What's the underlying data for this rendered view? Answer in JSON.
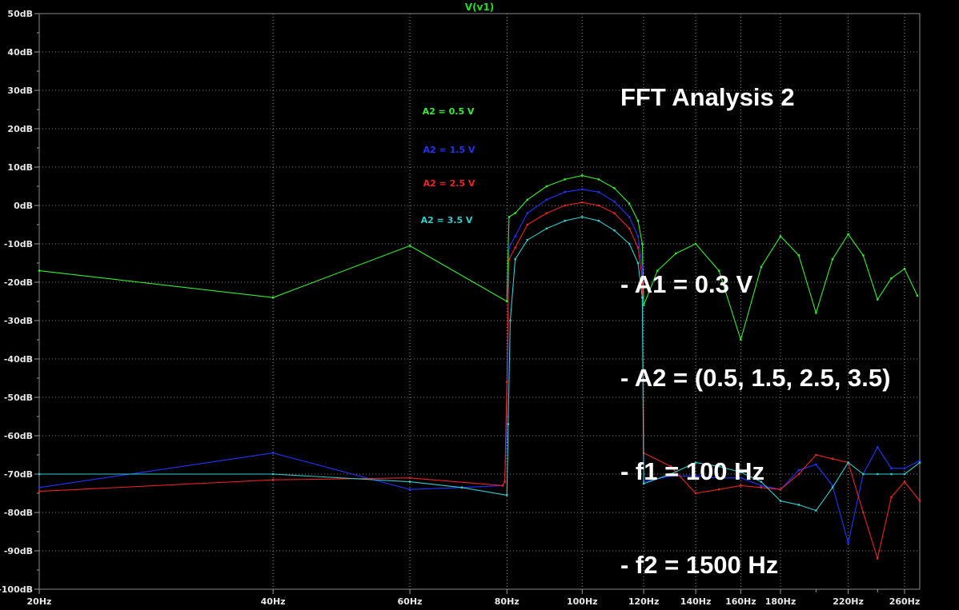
{
  "chart_data": {
    "type": "line",
    "title": "V(v1)",
    "x_axis": {
      "range_hz": [
        20,
        272
      ],
      "scale": "log",
      "ticks": [
        {
          "value": 20,
          "label": "20Hz"
        },
        {
          "value": 40,
          "label": "40Hz"
        },
        {
          "value": 60,
          "label": "60Hz"
        },
        {
          "value": 80,
          "label": "80Hz"
        },
        {
          "value": 100,
          "label": "100Hz"
        },
        {
          "value": 120,
          "label": "120Hz"
        },
        {
          "value": 140,
          "label": "140Hz"
        },
        {
          "value": 160,
          "label": "160Hz"
        },
        {
          "value": 180,
          "label": "180Hz"
        },
        {
          "value": 220,
          "label": "220Hz"
        },
        {
          "value": 260,
          "label": "260Hz"
        }
      ]
    },
    "y_axis": {
      "range_db": [
        -100,
        50
      ],
      "ticks": [
        {
          "value": 50,
          "label": "50dB"
        },
        {
          "value": 40,
          "label": "40dB"
        },
        {
          "value": 30,
          "label": "30dB"
        },
        {
          "value": 20,
          "label": "20dB"
        },
        {
          "value": 10,
          "label": "10dB"
        },
        {
          "value": 0,
          "label": "0dB"
        },
        {
          "value": -10,
          "label": "-10dB"
        },
        {
          "value": -20,
          "label": "-20dB"
        },
        {
          "value": -30,
          "label": "-30dB"
        },
        {
          "value": -40,
          "label": "-40dB"
        },
        {
          "value": -50,
          "label": "-50dB"
        },
        {
          "value": -60,
          "label": "-60dB"
        },
        {
          "value": -70,
          "label": "-70dB"
        },
        {
          "value": -80,
          "label": "-80dB"
        },
        {
          "value": -90,
          "label": "-90dB"
        },
        {
          "value": -100,
          "label": "-100dB"
        }
      ]
    },
    "grid": true,
    "series": [
      {
        "name": "A2 = 0.5 V",
        "color": "#33ee33",
        "points": [
          [
            20,
            -17
          ],
          [
            40,
            -24
          ],
          [
            60,
            -10.5
          ],
          [
            80,
            -25
          ],
          [
            80.5,
            -3
          ],
          [
            82,
            -2
          ],
          [
            85,
            1.5
          ],
          [
            90,
            5
          ],
          [
            95,
            6.8
          ],
          [
            100,
            7.8
          ],
          [
            105,
            6.8
          ],
          [
            110,
            4.5
          ],
          [
            115,
            0.5
          ],
          [
            118,
            -4
          ],
          [
            119.5,
            -10
          ],
          [
            120,
            -26
          ],
          [
            125,
            -17
          ],
          [
            132,
            -12.5
          ],
          [
            140,
            -10
          ],
          [
            150,
            -17
          ],
          [
            160,
            -35
          ],
          [
            170,
            -16
          ],
          [
            180,
            -8
          ],
          [
            190,
            -13
          ],
          [
            200,
            -28
          ],
          [
            210,
            -14
          ],
          [
            220,
            -7.5
          ],
          [
            230,
            -13
          ],
          [
            240,
            -24.5
          ],
          [
            250,
            -19
          ],
          [
            260,
            -16.5
          ],
          [
            270,
            -23.5
          ]
        ]
      },
      {
        "name": "A2 = 1.5 V",
        "color": "#2233ff",
        "points": [
          [
            20,
            -73.5
          ],
          [
            40,
            -64.5
          ],
          [
            60,
            -74
          ],
          [
            70,
            -73.5
          ],
          [
            79,
            -73
          ],
          [
            79.5,
            -72
          ],
          [
            80,
            -55
          ],
          [
            80.5,
            -11
          ],
          [
            82,
            -8
          ],
          [
            85,
            -2
          ],
          [
            90,
            1.5
          ],
          [
            95,
            3.5
          ],
          [
            100,
            4.2
          ],
          [
            105,
            3.5
          ],
          [
            110,
            1
          ],
          [
            115,
            -3
          ],
          [
            118,
            -8
          ],
          [
            119.5,
            -16
          ],
          [
            120,
            -72
          ],
          [
            130,
            -70.5
          ],
          [
            140,
            -70.5
          ],
          [
            150,
            -71
          ],
          [
            160,
            -71
          ],
          [
            170,
            -73
          ],
          [
            180,
            -74
          ],
          [
            190,
            -69
          ],
          [
            200,
            -67.5
          ],
          [
            210,
            -73
          ],
          [
            220,
            -88
          ],
          [
            230,
            -70
          ],
          [
            240,
            -63
          ],
          [
            250,
            -68.5
          ],
          [
            260,
            -68.5
          ],
          [
            272,
            -66.5
          ]
        ]
      },
      {
        "name": "A2 = 2.5 V",
        "color": "#ee2222",
        "points": [
          [
            20,
            -74.5
          ],
          [
            40,
            -71.5
          ],
          [
            60,
            -71
          ],
          [
            79,
            -73
          ],
          [
            79.5,
            -72
          ],
          [
            80,
            -46
          ],
          [
            80.5,
            -14
          ],
          [
            82,
            -11
          ],
          [
            85,
            -5
          ],
          [
            90,
            -2
          ],
          [
            95,
            0
          ],
          [
            100,
            0.8
          ],
          [
            105,
            0
          ],
          [
            110,
            -2
          ],
          [
            115,
            -6
          ],
          [
            118,
            -11
          ],
          [
            119.5,
            -19
          ],
          [
            120,
            -64.5
          ],
          [
            130,
            -68
          ],
          [
            140,
            -75
          ],
          [
            150,
            -74
          ],
          [
            160,
            -73
          ],
          [
            170,
            -73.5
          ],
          [
            180,
            -74
          ],
          [
            190,
            -70
          ],
          [
            200,
            -65
          ],
          [
            210,
            -66
          ],
          [
            220,
            -67
          ],
          [
            230,
            -80
          ],
          [
            240,
            -92
          ],
          [
            250,
            -76
          ],
          [
            260,
            -72
          ],
          [
            272,
            -77
          ]
        ]
      },
      {
        "name": "A2 = 3.5 V",
        "color": "#33cccc",
        "points": [
          [
            20,
            -70
          ],
          [
            40,
            -70
          ],
          [
            60,
            -72
          ],
          [
            70,
            -73.5
          ],
          [
            80,
            -75.5
          ],
          [
            80.3,
            -57
          ],
          [
            80.8,
            -30
          ],
          [
            82,
            -14
          ],
          [
            85,
            -9
          ],
          [
            90,
            -6
          ],
          [
            95,
            -4
          ],
          [
            100,
            -3
          ],
          [
            105,
            -4
          ],
          [
            110,
            -6.5
          ],
          [
            115,
            -10
          ],
          [
            118,
            -15
          ],
          [
            119.5,
            -24
          ],
          [
            120,
            -72.5
          ],
          [
            130,
            -70
          ],
          [
            140,
            -67
          ],
          [
            150,
            -68
          ],
          [
            160,
            -69.5
          ],
          [
            170,
            -72
          ],
          [
            180,
            -77
          ],
          [
            190,
            -78
          ],
          [
            200,
            -79.5
          ],
          [
            210,
            -73.5
          ],
          [
            220,
            -67
          ],
          [
            230,
            -70
          ],
          [
            240,
            -70
          ],
          [
            250,
            -70
          ],
          [
            260,
            -70
          ],
          [
            272,
            -67
          ]
        ]
      }
    ]
  },
  "legend": [
    {
      "label": "A2 = 0.5 V",
      "color": "#33ee33"
    },
    {
      "label": "A2 = 1.5 V",
      "color": "#2233ff"
    },
    {
      "label": "A2 = 2.5 V",
      "color": "#ee2222"
    },
    {
      "label": "A2 = 3.5 V",
      "color": "#33cccc"
    }
  ],
  "annotation": {
    "heading": "FFT Analysis 2",
    "lines": [
      "- A1 = 0.3 V",
      "- A2 = (0.5, 1.5, 2.5, 3.5)",
      "- f1 = 100 Hz",
      "- f2 = 1500 Hz"
    ]
  }
}
